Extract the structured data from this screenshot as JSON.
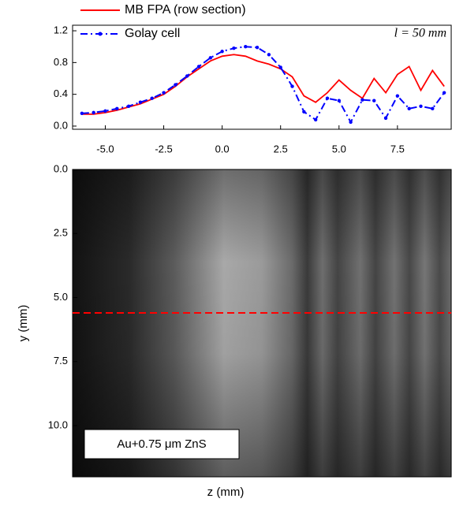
{
  "chart_data": [
    {
      "type": "line",
      "x": [
        -6.0,
        -5.5,
        -5.0,
        -4.5,
        -4.0,
        -3.5,
        -3.0,
        -2.5,
        -2.0,
        -1.5,
        -1.0,
        -0.5,
        0.0,
        0.5,
        1.0,
        1.5,
        2.0,
        2.5,
        3.0,
        3.5,
        4.0,
        4.5,
        5.0,
        5.5,
        6.0,
        6.5,
        7.0,
        7.5,
        8.0,
        8.5,
        9.0,
        9.5
      ],
      "series": [
        {
          "name": "MB FPA (row section)",
          "color": "#ff0000",
          "style": "solid",
          "values": [
            0.15,
            0.15,
            0.17,
            0.2,
            0.24,
            0.28,
            0.34,
            0.4,
            0.5,
            0.62,
            0.72,
            0.82,
            0.88,
            0.9,
            0.88,
            0.82,
            0.78,
            0.72,
            0.62,
            0.38,
            0.3,
            0.42,
            0.58,
            0.45,
            0.35,
            0.6,
            0.42,
            0.65,
            0.75,
            0.45,
            0.7,
            0.5
          ]
        },
        {
          "name": "Golay cell",
          "color": "#0000ff",
          "style": "dash-dot-markers",
          "values": [
            0.16,
            0.17,
            0.19,
            0.22,
            0.25,
            0.3,
            0.35,
            0.42,
            0.52,
            0.63,
            0.75,
            0.86,
            0.94,
            0.98,
            1.0,
            0.99,
            0.9,
            0.74,
            0.5,
            0.18,
            0.08,
            0.35,
            0.32,
            0.05,
            0.33,
            0.32,
            0.1,
            0.38,
            0.22,
            0.25,
            0.22,
            0.42
          ]
        }
      ],
      "xlim": [
        -6.4,
        9.8
      ],
      "xticks": [
        {
          "value": -5.0,
          "label": "-5.0"
        },
        -2.5,
        {
          "value": 0,
          "label": "0.0"
        },
        2.5,
        {
          "value": 5,
          "label": "5.0"
        },
        7.5
      ],
      "ylim": [
        -0.04,
        1.27
      ],
      "yticks": [
        {
          "value": 0,
          "label": "0.0"
        },
        0.4,
        0.8,
        1.2
      ],
      "annotation": "l = 50 mm",
      "legend": "upper left"
    },
    {
      "type": "image",
      "xlabel": "z (mm)",
      "ylabel": "y (mm)",
      "xlim": [
        -6.4,
        9.8
      ],
      "ylim": [
        12,
        0
      ],
      "yticks": [
        {
          "value": 0,
          "label": "0.0"
        },
        2.5,
        {
          "value": 5,
          "label": "5.0"
        },
        7.5,
        {
          "value": 10,
          "label": "10.0"
        }
      ],
      "row_section_y": 5.6,
      "row_section_color": "#ff0000",
      "annotation": "Au+0.75 μm ZnS"
    }
  ]
}
